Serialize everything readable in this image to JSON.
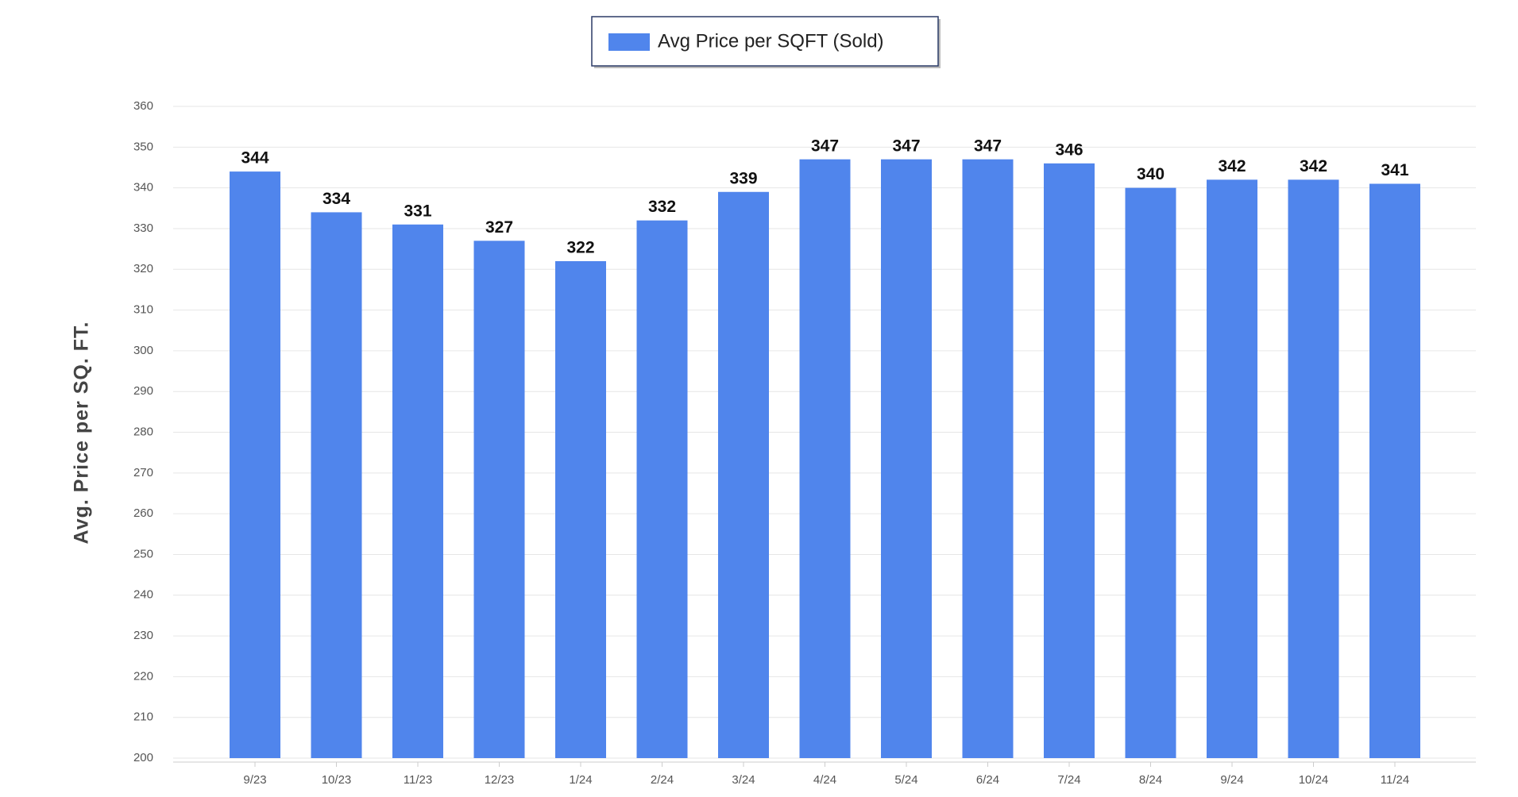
{
  "chart_data": {
    "type": "bar",
    "y_axis_label": "Avg. Price per SQ. FT.",
    "categories": [
      "9/23",
      "10/23",
      "11/23",
      "12/23",
      "1/24",
      "2/24",
      "3/24",
      "4/24",
      "5/24",
      "6/24",
      "7/24",
      "8/24",
      "9/24",
      "10/24",
      "11/24"
    ],
    "series": [
      {
        "name": "Avg Price per SQFT (Sold)",
        "color": "#5085ec",
        "values": [
          344,
          334,
          331,
          327,
          322,
          332,
          339,
          347,
          347,
          347,
          346,
          340,
          342,
          342,
          341
        ]
      }
    ],
    "ylim": [
      200,
      360
    ],
    "yticks": [
      200,
      210,
      220,
      230,
      240,
      250,
      260,
      270,
      280,
      290,
      300,
      310,
      320,
      330,
      340,
      350,
      360
    ],
    "grid": true,
    "legend": "top"
  }
}
